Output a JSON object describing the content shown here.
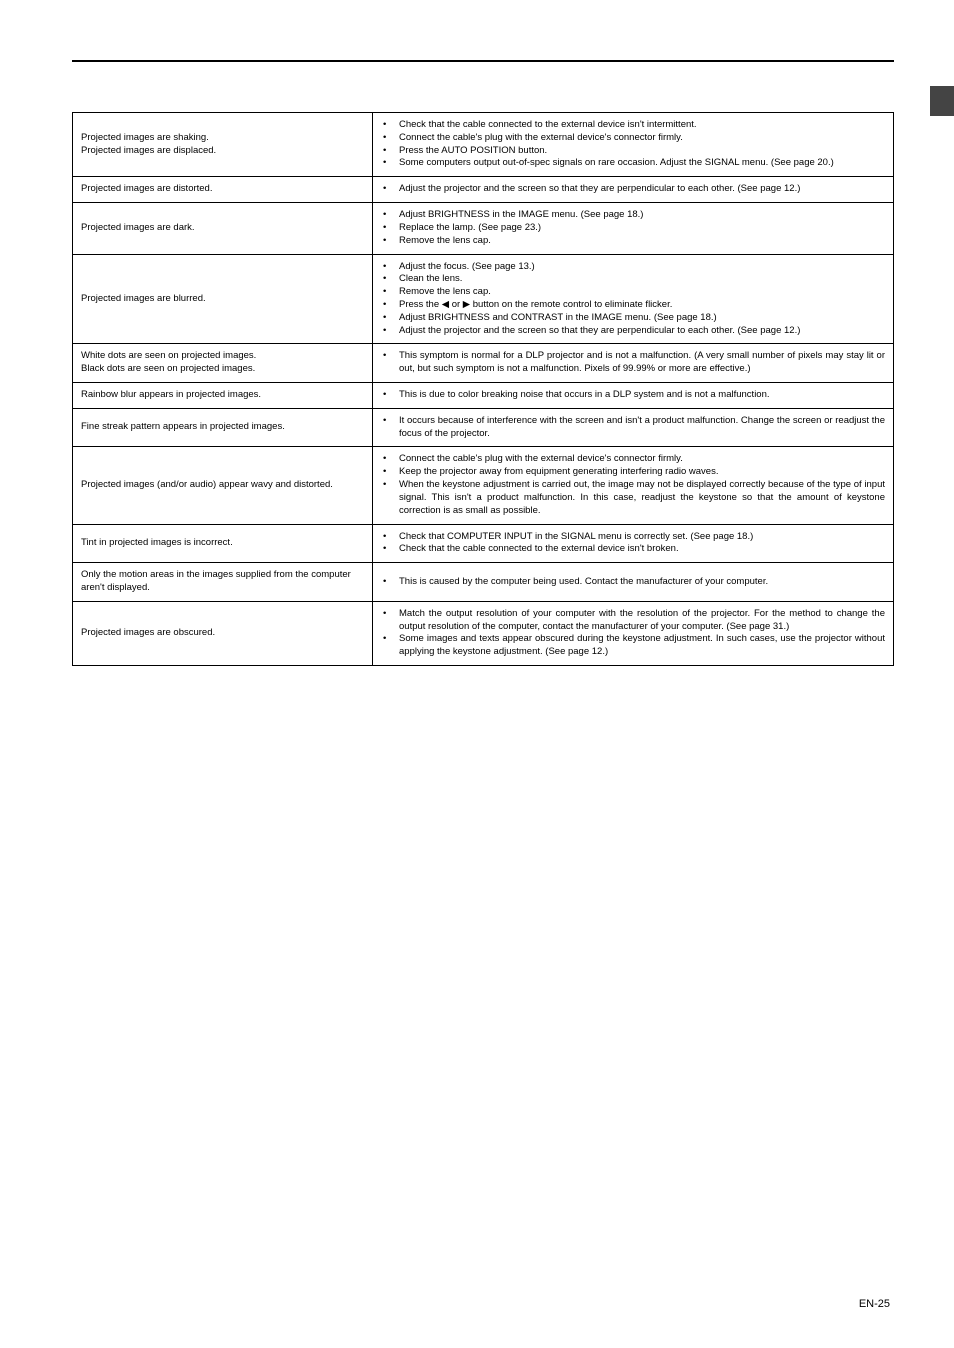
{
  "footer": "EN-25",
  "rows": [
    {
      "problem": "Projected images are shaking.\nProjected images are displaced.",
      "solutions": [
        "Check that the cable connected to the external device isn't intermittent.",
        "Connect the cable's plug with the external device's connector firmly.",
        "Press the AUTO POSITION button.",
        "Some computers output out-of-spec signals on rare occasion. Adjust the SIGNAL menu. (See page 20.)"
      ]
    },
    {
      "problem": "Projected images are distorted.",
      "solutions": [
        "Adjust the projector and the screen so that they are perpendicular to each other. (See page 12.)"
      ]
    },
    {
      "problem": "Projected images are dark.",
      "solutions": [
        "Adjust BRIGHTNESS in the IMAGE menu. (See page 18.)",
        "Replace the lamp. (See page 23.)",
        "Remove the lens cap."
      ]
    },
    {
      "problem": "Projected images are blurred.",
      "solutions": [
        "Adjust the focus. (See page 13.)",
        "Clean the lens.",
        "Remove the lens cap.",
        "Press the ◀ or ▶ button on the remote control to eliminate flicker.",
        "Adjust BRIGHTNESS and CONTRAST in the IMAGE menu. (See page 18.)",
        "Adjust the projector and the screen so that they are perpendicular to each other. (See page 12.)"
      ]
    },
    {
      "problem": "White dots are seen on projected images.\nBlack dots are seen on projected images.",
      "solutions": [
        "This symptom is normal for a DLP projector and is not a malfunction. (A very small number of pixels may stay lit or out, but such symptom is not a malfunction. Pixels of 99.99% or more are effective.)"
      ]
    },
    {
      "problem": "Rainbow blur appears in projected images.",
      "solutions": [
        "This is due to color breaking noise that occurs in a DLP system and is not a malfunction."
      ]
    },
    {
      "problem": "Fine streak pattern appears in projected images.",
      "solutions": [
        "It occurs because of interference with the screen and isn't a product malfunction. Change the screen or readjust the focus of the projector."
      ]
    },
    {
      "problem": "Projected images (and/or audio) appear wavy and distorted.",
      "solutions": [
        "Connect the cable's plug with the external device's connector firmly.",
        "Keep the projector away from equipment generating interfering radio waves.",
        "When the keystone adjustment is carried out, the image may not be displayed correctly because of the type of input signal. This isn't a product malfunction. In this case, readjust the keystone so that the amount of keystone correction is as small as possible."
      ]
    },
    {
      "problem": "Tint in projected images is incorrect.",
      "solutions": [
        "Check that COMPUTER INPUT in the SIGNAL menu is correctly set. (See page 18.)",
        "Check that the cable connected to the external device isn't broken."
      ]
    },
    {
      "problem": "Only the motion areas in the images supplied from the computer aren't displayed.",
      "solutions": [
        "This is caused by the computer being used. Contact the manufacturer of your computer."
      ]
    },
    {
      "problem": "Projected images are obscured.",
      "solutions": [
        "Match the output resolution of your computer with the resolution of the projector.  For the method to change the output resolution of the computer, contact the manufacturer of your computer. (See page 31.)",
        "Some images and texts appear obscured during the keystone adjustment. In such cases, use the projector without applying the keystone adjustment. (See page 12.)"
      ]
    }
  ]
}
